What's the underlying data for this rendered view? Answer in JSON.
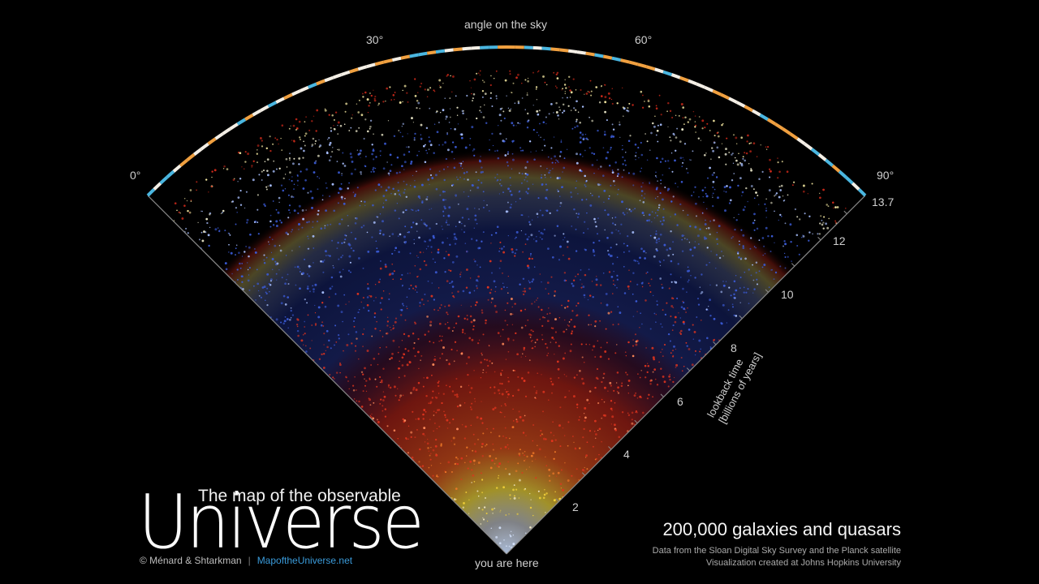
{
  "axis": {
    "angle_title": "angle on the sky",
    "angle_ticks": [
      "0°",
      "30°",
      "60°",
      "90°"
    ],
    "lookback_ticks": [
      "2",
      "4",
      "6",
      "8",
      "10",
      "12",
      "13.7"
    ],
    "lookback_title_line1": "lookback time",
    "lookback_title_line2": "[billions of years]",
    "origin_label": "you are here"
  },
  "title": {
    "small": "The map of the observable",
    "big": "Universe"
  },
  "credit": {
    "authors": "© Ménard & Shtarkman",
    "separator": "|",
    "site": "MapoftheUniverse.net"
  },
  "summary": {
    "count": "200,000 galaxies and quasars",
    "source_line1": "Data from the Sloan Digital Sky Survey and the Planck satellite",
    "source_line2": "Visualization created at Johns Hopkins University"
  },
  "colors": {
    "background": "#000000",
    "near_galaxies": "#cfe3ff",
    "yellow_band": "#f5d33a",
    "red_band": "#e0341e",
    "blue_quasars": "#3b5bd6",
    "edge_red": "#d12a1a",
    "cmb_warm": "#f0a040",
    "cmb_cool": "#4ab6e0",
    "link": "#3a9ad9"
  }
}
